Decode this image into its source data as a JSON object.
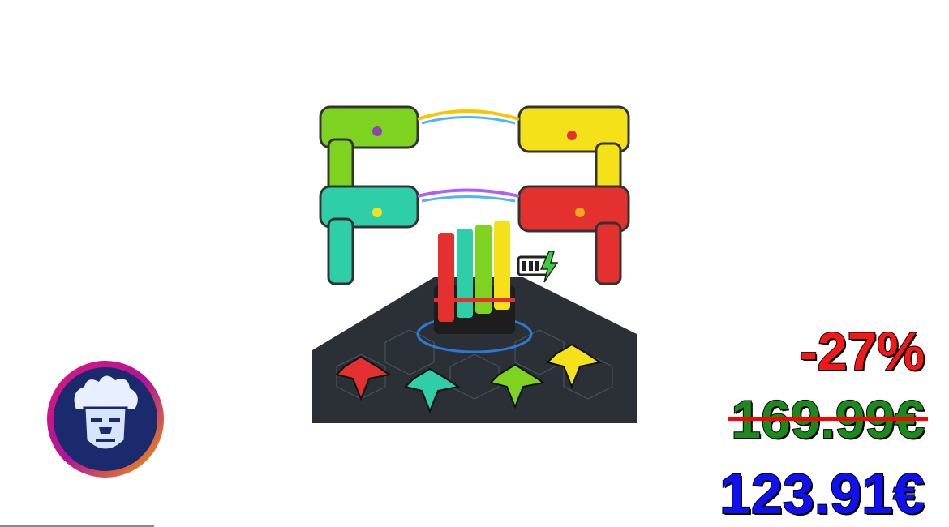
{
  "deal": {
    "discount": "-27%",
    "old_price": "169.99€",
    "new_price": "123.91€"
  },
  "product": {
    "image_icon": "laser-tag-set-image",
    "battery_icon": "battery-charging-icon"
  },
  "brand": {
    "logo_icon": "mascot-face-logo-icon"
  },
  "colors": {
    "discount": "#f21818",
    "old_price": "#1a8a1a",
    "new_price": "#1010f0",
    "strike": "#ff0000",
    "gun_green": "#7ed321",
    "gun_yellow": "#f5e11a",
    "gun_teal": "#2ecfa8",
    "gun_red": "#e53030"
  }
}
